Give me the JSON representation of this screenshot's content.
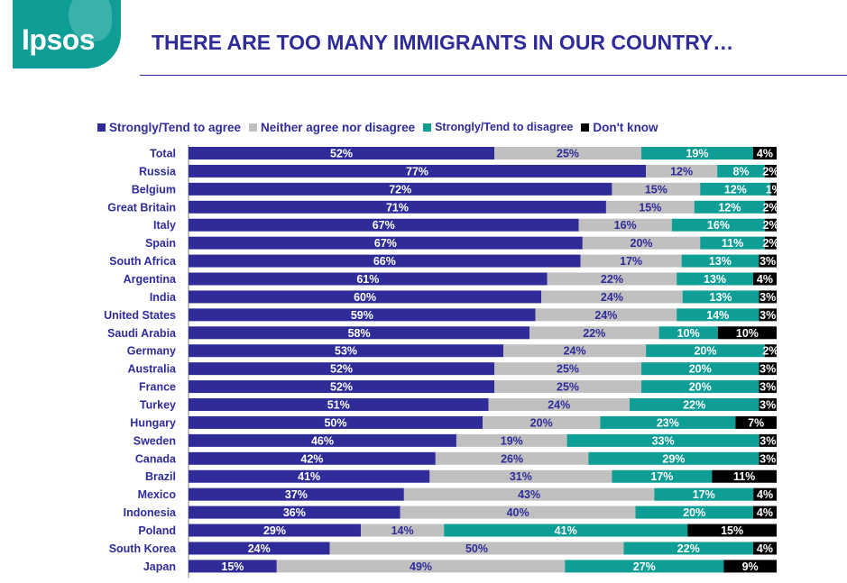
{
  "header": {
    "logo_text": "Ipsos",
    "title": "THERE ARE TOO MANY IMMIGRANTS IN OUR COUNTRY…"
  },
  "colors": {
    "brand_teal": "#0e9e96",
    "title_navy": "#2f2c9a",
    "agree": "#2f2c9a",
    "neither": "#c0c0c0",
    "disagree": "#0e9e96",
    "dont_know": "#000000"
  },
  "chart_data": {
    "type": "bar",
    "orientation": "horizontal",
    "stacked": true,
    "normalized_percent": true,
    "legend_position": "top",
    "categories": [
      "Total",
      "Russia",
      "Belgium",
      "Great Britain",
      "Italy",
      "Spain",
      "South Africa",
      "Argentina",
      "India",
      "United States",
      "Saudi Arabia",
      "Germany",
      "Australia",
      "France",
      "Turkey",
      "Hungary",
      "Sweden",
      "Canada",
      "Brazil",
      "Mexico",
      "Indonesia",
      "Poland",
      "South Korea",
      "Japan"
    ],
    "series": [
      {
        "name": "Strongly/Tend to agree",
        "values": [
          52,
          77,
          72,
          71,
          67,
          67,
          66,
          61,
          60,
          59,
          58,
          53,
          52,
          52,
          51,
          50,
          46,
          42,
          41,
          37,
          36,
          29,
          24,
          15
        ]
      },
      {
        "name": "Neither agree nor disagree",
        "values": [
          25,
          12,
          15,
          15,
          16,
          20,
          17,
          22,
          24,
          24,
          22,
          24,
          25,
          25,
          24,
          20,
          19,
          26,
          31,
          43,
          40,
          14,
          50,
          49
        ]
      },
      {
        "name": "Strongly/Tend to disagree",
        "values": [
          19,
          8,
          12,
          12,
          16,
          11,
          13,
          13,
          13,
          14,
          10,
          20,
          20,
          20,
          22,
          23,
          33,
          29,
          17,
          17,
          20,
          41,
          22,
          27
        ]
      },
      {
        "name": "Don't know",
        "values": [
          4,
          2,
          1,
          2,
          2,
          2,
          3,
          4,
          3,
          3,
          10,
          2,
          3,
          3,
          3,
          7,
          3,
          3,
          11,
          4,
          4,
          15,
          4,
          9
        ]
      }
    ],
    "value_suffix": "%"
  }
}
